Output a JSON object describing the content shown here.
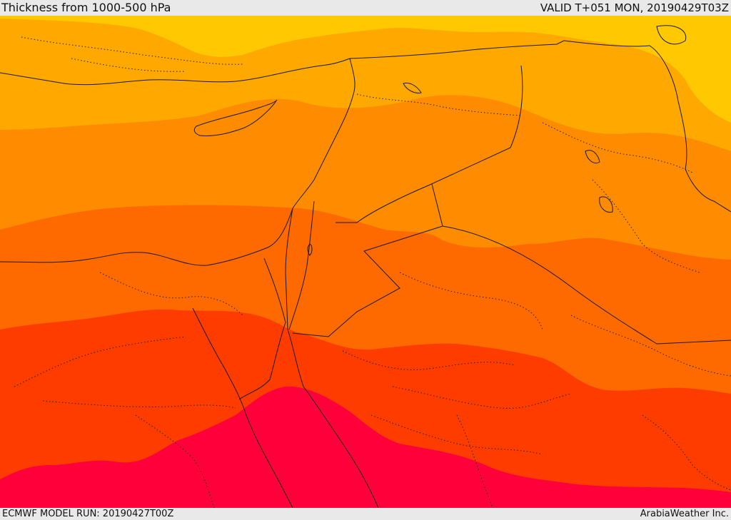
{
  "header": {
    "title": "Thickness from 1000-500 hPa",
    "valid_time": "VALID T+051 MON, 20190429T03Z"
  },
  "footer": {
    "model_run": "ECMWF MODEL RUN: 20190427T00Z",
    "credit": "ArabiaWeather Inc."
  },
  "map": {
    "field": "1000-500 hPa thickness",
    "color_bands": [
      "#ffc800",
      "#ffa800",
      "#ff8c00",
      "#ff6a00",
      "#ff3c00",
      "#ff003a"
    ]
  }
}
